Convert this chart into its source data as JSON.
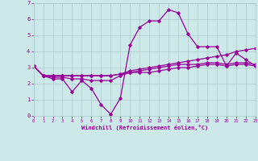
{
  "xlabel": "Windchill (Refroidissement éolien,°C)",
  "xlim": [
    0,
    23
  ],
  "ylim": [
    0,
    7
  ],
  "xticks": [
    0,
    1,
    2,
    3,
    4,
    5,
    6,
    7,
    8,
    9,
    10,
    11,
    12,
    13,
    14,
    15,
    16,
    17,
    18,
    19,
    20,
    21,
    22,
    23
  ],
  "yticks": [
    0,
    1,
    2,
    3,
    4,
    5,
    6,
    7
  ],
  "background_color": "#cce8e8",
  "grid_color": "#aacccc",
  "line_color": "#990099",
  "series": [
    [
      3.1,
      2.5,
      2.3,
      2.3,
      1.5,
      2.2,
      1.7,
      0.7,
      0.1,
      1.1,
      4.4,
      5.5,
      5.9,
      5.9,
      6.6,
      6.4,
      5.1,
      4.3,
      4.3,
      4.3,
      3.1,
      3.9,
      3.5,
      3.1
    ],
    [
      3.1,
      2.5,
      2.4,
      2.4,
      2.3,
      2.3,
      2.2,
      2.2,
      2.2,
      2.5,
      2.7,
      2.7,
      2.7,
      2.8,
      2.9,
      3.0,
      3.0,
      3.1,
      3.2,
      3.2,
      3.1,
      3.2,
      3.2,
      3.1
    ],
    [
      3.1,
      2.5,
      2.5,
      2.5,
      2.5,
      2.5,
      2.5,
      2.5,
      2.5,
      2.6,
      2.7,
      2.8,
      2.9,
      3.0,
      3.1,
      3.2,
      3.2,
      3.2,
      3.3,
      3.3,
      3.2,
      3.3,
      3.3,
      3.2
    ],
    [
      3.1,
      2.5,
      2.5,
      2.5,
      2.5,
      2.5,
      2.5,
      2.5,
      2.5,
      2.6,
      2.8,
      2.9,
      3.0,
      3.1,
      3.2,
      3.3,
      3.4,
      3.5,
      3.6,
      3.7,
      3.8,
      4.0,
      4.1,
      4.2
    ]
  ]
}
